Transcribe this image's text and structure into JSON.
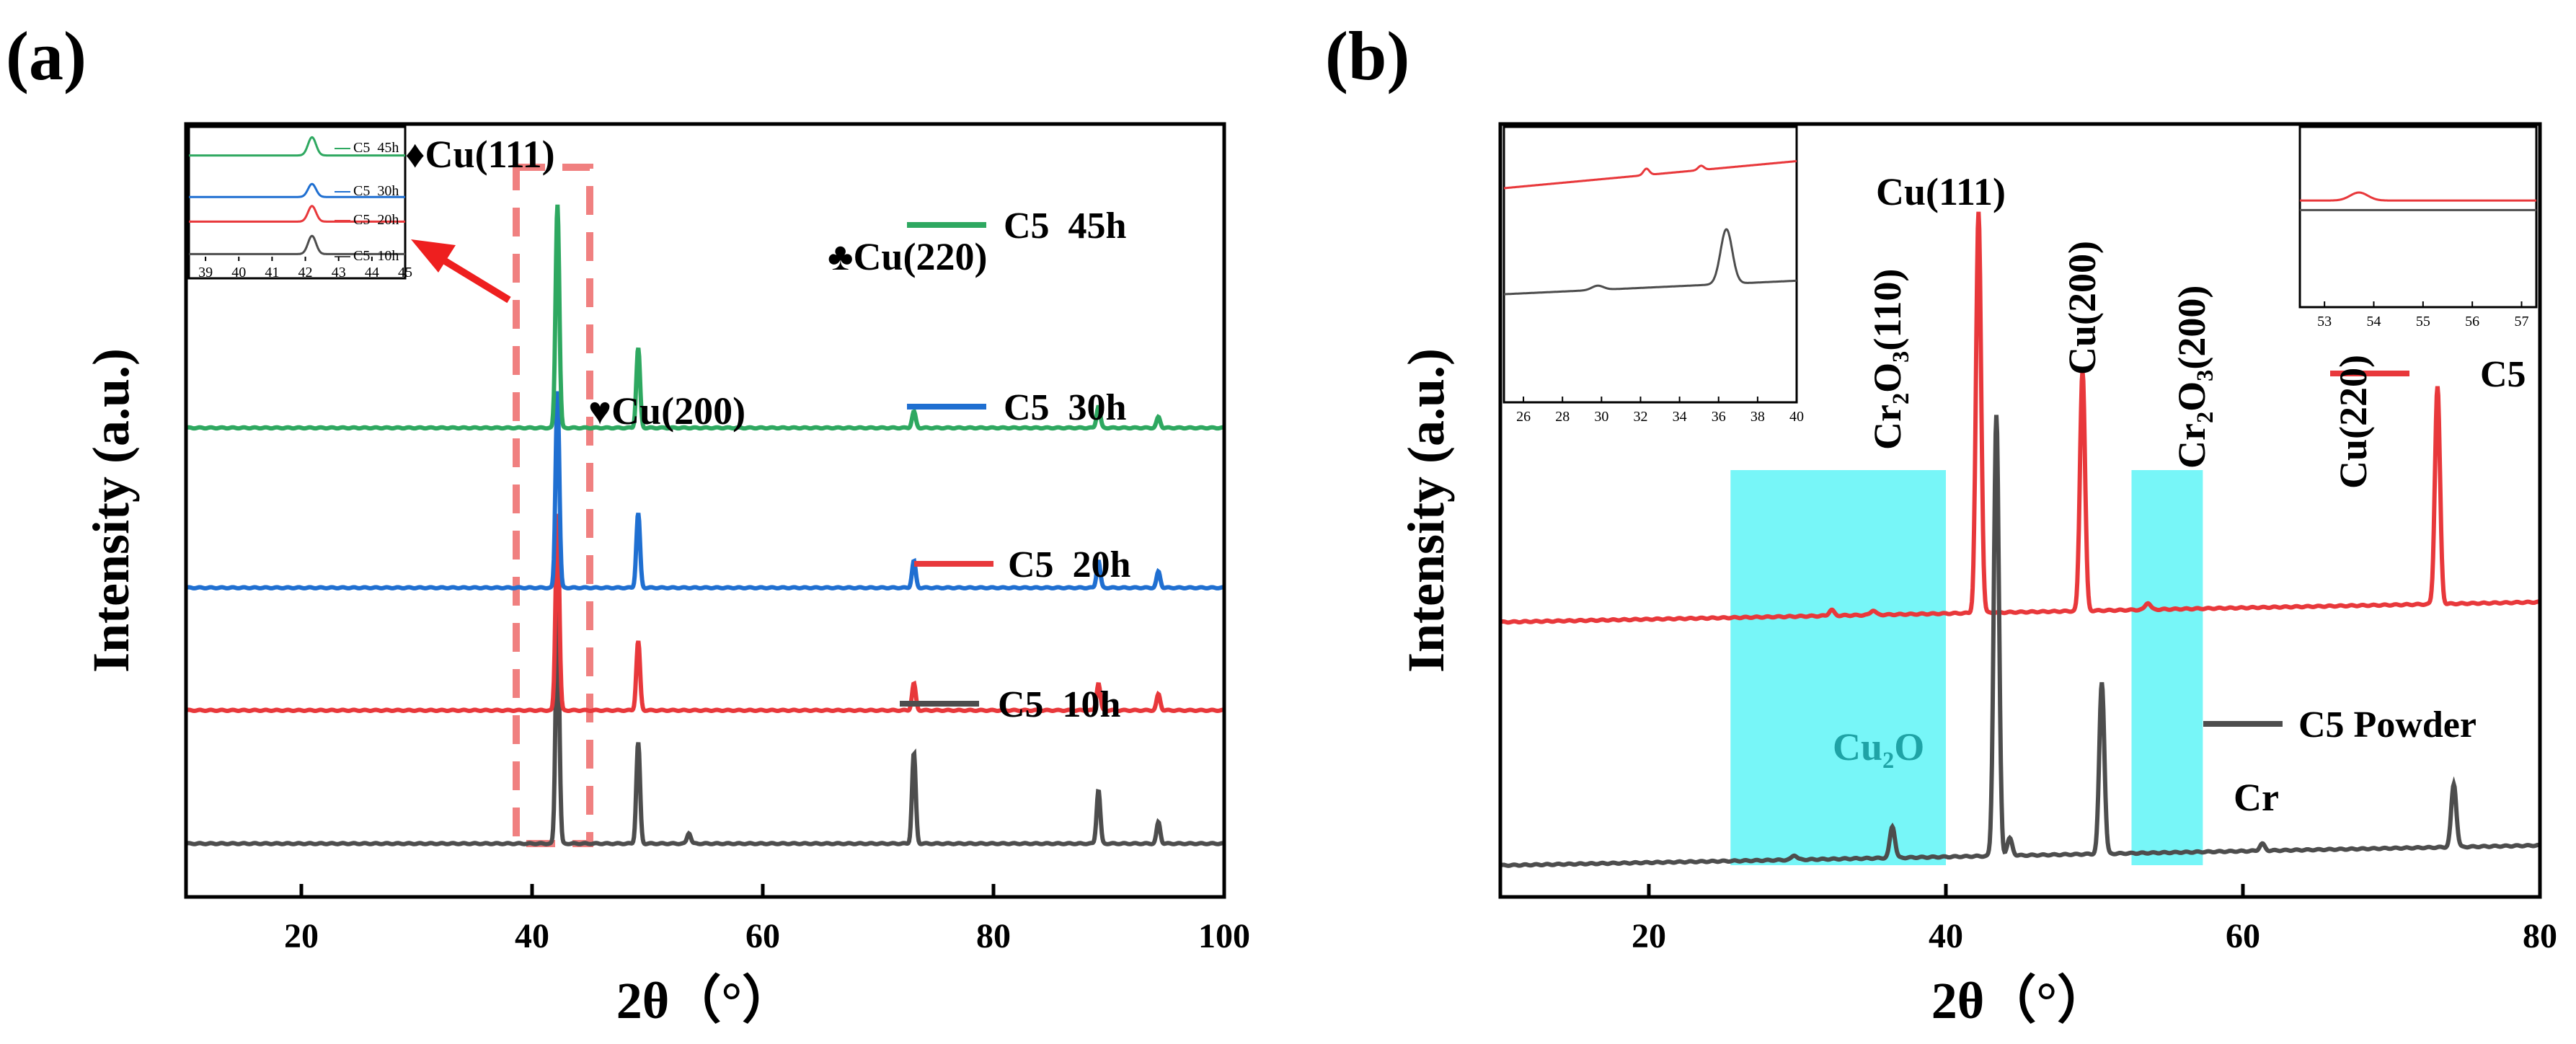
{
  "chart_data": [
    {
      "panel": "(a)",
      "type": "line",
      "xlabel": "2θ（°）",
      "ylabel": "Intensity (a.u.)",
      "xlim": [
        10,
        100
      ],
      "x_ticks": [
        20,
        40,
        60,
        80,
        100
      ],
      "x_tick_labels": [
        "20",
        "40",
        "60",
        "80",
        "100"
      ],
      "series": [
        {
          "name": "C5  10h",
          "color": "#4d4d4d",
          "baseline": 0.1,
          "peaks": [
            [
              42.2,
              0.44
            ],
            [
              49.2,
              0.19
            ],
            [
              53.6,
              0.02
            ],
            [
              73.1,
              0.17
            ],
            [
              89.1,
              0.1
            ],
            [
              94.3,
              0.04
            ]
          ]
        },
        {
          "name": "C5  20h",
          "color": "#e8383b",
          "baseline": 0.35,
          "peaks": [
            [
              42.2,
              0.37
            ],
            [
              49.2,
              0.13
            ],
            [
              73.1,
              0.05
            ],
            [
              89.1,
              0.05
            ],
            [
              94.3,
              0.03
            ]
          ]
        },
        {
          "name": "C5  30h",
          "color": "#1f6fd1",
          "baseline": 0.58,
          "peaks": [
            [
              42.2,
              0.37
            ],
            [
              49.2,
              0.14
            ],
            [
              73.1,
              0.05
            ],
            [
              89.1,
              0.05
            ],
            [
              94.3,
              0.03
            ]
          ]
        },
        {
          "name": "C5  45h",
          "color": "#2ea860",
          "baseline": 0.88,
          "peaks": [
            [
              42.2,
              0.42
            ],
            [
              49.2,
              0.15
            ],
            [
              73.1,
              0.03
            ],
            [
              89.1,
              0.04
            ],
            [
              94.3,
              0.02
            ]
          ]
        }
      ],
      "annotations": [
        "♦Cu(111)",
        "♣Cu(220)",
        "♥Cu(200)"
      ],
      "inset": {
        "xlim": [
          38.5,
          45
        ],
        "x_tick_labels": [
          "39",
          "40",
          "41",
          "42",
          "43",
          "44",
          "45"
        ],
        "legend": [
          "C5  45h",
          "C5  30h",
          "C5  20h",
          "C5  10h"
        ]
      },
      "highlight_range": [
        38.8,
        45.0
      ]
    },
    {
      "panel": "(b)",
      "type": "line",
      "xlabel": "2θ（°）",
      "ylabel": "Intensity (a.u.)",
      "xlim": [
        10,
        80
      ],
      "x_ticks": [
        20,
        40,
        60,
        80
      ],
      "x_tick_labels": [
        "20",
        "40",
        "60",
        "80"
      ],
      "series": [
        {
          "name": "C5",
          "color": "#e8383b",
          "baseline": 0.48,
          "slope": 0.035,
          "peaks": [
            [
              32.3,
              0.01
            ],
            [
              35.1,
              0.008
            ],
            [
              42.2,
              0.7
            ],
            [
              49.2,
              0.42
            ],
            [
              53.6,
              0.012
            ],
            [
              73.1,
              0.38
            ]
          ]
        },
        {
          "name": "C5 Powder",
          "color": "#4d4d4d",
          "baseline": 0.055,
          "slope": 0.035,
          "peaks": [
            [
              29.8,
              0.008
            ],
            [
              36.4,
              0.055
            ],
            [
              43.4,
              0.77
            ],
            [
              44.3,
              0.03
            ],
            [
              50.5,
              0.3
            ],
            [
              61.3,
              0.012
            ],
            [
              74.2,
              0.11
            ]
          ]
        }
      ],
      "annotations": {
        "cu111": "Cu(111)",
        "cu200": "Cu(200)",
        "cu220": "Cu(220)",
        "cr2o3_110": "Cr₂O₃(110)",
        "cr2o3_200": "Cr₂O₃(200)",
        "cu2o": "Cu₂O",
        "cr": "Cr"
      },
      "highlight_ranges": [
        [
          25.5,
          40.0
        ],
        [
          52.5,
          57.3
        ]
      ],
      "inset_left": {
        "xlim": [
          25,
          40
        ],
        "x_tick_labels": [
          "26",
          "28",
          "30",
          "32",
          "34",
          "36",
          "38",
          "40"
        ]
      },
      "inset_right": {
        "xlim": [
          52.5,
          57.3
        ],
        "x_tick_labels": [
          "53",
          "54",
          "55",
          "56",
          "57"
        ]
      }
    }
  ],
  "colors": {
    "highlight": "#5ff5f7",
    "dash_box": "#f08080",
    "arrow": "#ee1f1f",
    "axis": "#000000"
  }
}
